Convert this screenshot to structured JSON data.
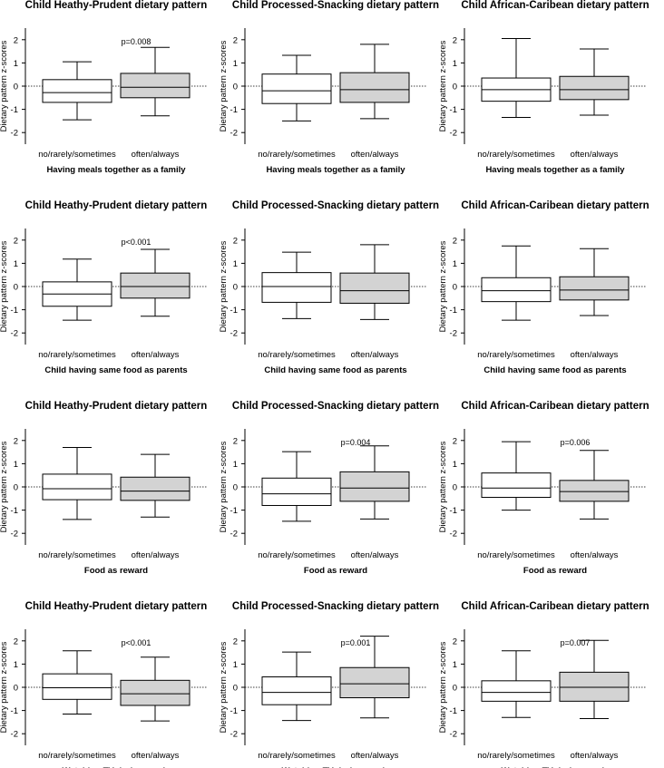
{
  "chart_data": [
    {
      "type": "box",
      "title": "Child Heathy-Prudent dietary pattern",
      "xlabel": "Having meals together as a family",
      "ylabel": "Dietary pattern z-scores",
      "ylim": [
        -2.5,
        2.5
      ],
      "yticks": [
        -2,
        -1,
        0,
        1,
        2
      ],
      "categories": [
        "no/rarely/sometimes",
        "often/always"
      ],
      "pvalue": "p=0.008",
      "boxes": [
        {
          "whislo": -1.45,
          "q1": -0.7,
          "med": -0.28,
          "q3": 0.28,
          "whishi": 1.05,
          "fill": "#ffffff"
        },
        {
          "whislo": -1.28,
          "q1": -0.5,
          "med": -0.05,
          "q3": 0.55,
          "whishi": 1.67,
          "fill": "#d3d3d3"
        }
      ]
    },
    {
      "type": "box",
      "title": "Child Processed-Snacking dietary pattern",
      "xlabel": "Having meals together as a family",
      "ylabel": "Dietary pattern z-scores",
      "ylim": [
        -2.5,
        2.5
      ],
      "yticks": [
        -2,
        -1,
        0,
        1,
        2
      ],
      "categories": [
        "no/rarely/sometimes",
        "often/always"
      ],
      "pvalue": "",
      "boxes": [
        {
          "whislo": -1.5,
          "q1": -0.75,
          "med": -0.2,
          "q3": 0.52,
          "whishi": 1.33,
          "fill": "#ffffff"
        },
        {
          "whislo": -1.4,
          "q1": -0.7,
          "med": -0.15,
          "q3": 0.58,
          "whishi": 1.8,
          "fill": "#d3d3d3"
        }
      ]
    },
    {
      "type": "box",
      "title": "Child African-Caribean dietary pattern",
      "xlabel": "Having meals together as a family",
      "ylabel": "Dietary pattern z-scores",
      "ylim": [
        -2.5,
        2.5
      ],
      "yticks": [
        -2,
        -1,
        0,
        1,
        2
      ],
      "categories": [
        "no/rarely/sometimes",
        "often/always"
      ],
      "pvalue": "",
      "boxes": [
        {
          "whislo": -1.35,
          "q1": -0.65,
          "med": -0.15,
          "q3": 0.35,
          "whishi": 2.05,
          "fill": "#ffffff"
        },
        {
          "whislo": -1.25,
          "q1": -0.58,
          "med": -0.15,
          "q3": 0.42,
          "whishi": 1.6,
          "fill": "#d3d3d3"
        }
      ]
    },
    {
      "type": "box",
      "title": "Child Heathy-Prudent dietary pattern",
      "xlabel": "Child having same food as parents",
      "ylabel": "Dietary pattern z-scores",
      "ylim": [
        -2.5,
        2.5
      ],
      "yticks": [
        -2,
        -1,
        0,
        1,
        2
      ],
      "categories": [
        "no/rarely/sometimes",
        "often/always"
      ],
      "pvalue": "p<0.001",
      "boxes": [
        {
          "whislo": -1.45,
          "q1": -0.85,
          "med": -0.32,
          "q3": 0.2,
          "whishi": 1.18,
          "fill": "#ffffff"
        },
        {
          "whislo": -1.28,
          "q1": -0.5,
          "med": 0.0,
          "q3": 0.58,
          "whishi": 1.6,
          "fill": "#d3d3d3"
        }
      ]
    },
    {
      "type": "box",
      "title": "Child Processed-Snacking dietary pattern",
      "xlabel": "Child having same food as parents",
      "ylabel": "Dietary pattern z-scores",
      "ylim": [
        -2.5,
        2.5
      ],
      "yticks": [
        -2,
        -1,
        0,
        1,
        2
      ],
      "categories": [
        "no/rarely/sometimes",
        "often/always"
      ],
      "pvalue": "",
      "boxes": [
        {
          "whislo": -1.38,
          "q1": -0.68,
          "med": 0.0,
          "q3": 0.6,
          "whishi": 1.48,
          "fill": "#ffffff"
        },
        {
          "whislo": -1.42,
          "q1": -0.72,
          "med": -0.18,
          "q3": 0.58,
          "whishi": 1.8,
          "fill": "#d3d3d3"
        }
      ]
    },
    {
      "type": "box",
      "title": "Child African-Caribean dietary pattern",
      "xlabel": "Child having same food as parents",
      "ylabel": "Dietary pattern z-scores",
      "ylim": [
        -2.5,
        2.5
      ],
      "yticks": [
        -2,
        -1,
        0,
        1,
        2
      ],
      "categories": [
        "no/rarely/sometimes",
        "often/always"
      ],
      "pvalue": "",
      "boxes": [
        {
          "whislo": -1.45,
          "q1": -0.65,
          "med": -0.18,
          "q3": 0.38,
          "whishi": 1.75,
          "fill": "#ffffff"
        },
        {
          "whislo": -1.25,
          "q1": -0.58,
          "med": -0.15,
          "q3": 0.42,
          "whishi": 1.63,
          "fill": "#d3d3d3"
        }
      ]
    },
    {
      "type": "box",
      "title": "Child Heathy-Prudent dietary pattern",
      "xlabel": "Food as reward",
      "ylabel": "Dietary pattern z-scores",
      "ylim": [
        -2.5,
        2.5
      ],
      "yticks": [
        -2,
        -1,
        0,
        1,
        2
      ],
      "categories": [
        "no/rarely/sometimes",
        "often/always"
      ],
      "pvalue": "",
      "boxes": [
        {
          "whislo": -1.4,
          "q1": -0.55,
          "med": -0.08,
          "q3": 0.55,
          "whishi": 1.7,
          "fill": "#ffffff"
        },
        {
          "whislo": -1.3,
          "q1": -0.58,
          "med": -0.18,
          "q3": 0.42,
          "whishi": 1.4,
          "fill": "#d3d3d3"
        }
      ]
    },
    {
      "type": "box",
      "title": "Child Processed-Snacking dietary pattern",
      "xlabel": "Food as reward",
      "ylabel": "Dietary pattern z-scores",
      "ylim": [
        -2.5,
        2.5
      ],
      "yticks": [
        -2,
        -1,
        0,
        1,
        2
      ],
      "categories": [
        "no/rarely/sometimes",
        "often/always"
      ],
      "pvalue": "p=0.004",
      "boxes": [
        {
          "whislo": -1.48,
          "q1": -0.8,
          "med": -0.3,
          "q3": 0.38,
          "whishi": 1.52,
          "fill": "#ffffff"
        },
        {
          "whislo": -1.38,
          "q1": -0.62,
          "med": -0.05,
          "q3": 0.65,
          "whishi": 1.77,
          "fill": "#d3d3d3"
        }
      ]
    },
    {
      "type": "box",
      "title": "Child African-Caribean dietary pattern",
      "xlabel": "Food as reward",
      "ylabel": "Dietary pattern z-scores",
      "ylim": [
        -2.5,
        2.5
      ],
      "yticks": [
        -2,
        -1,
        0,
        1,
        2
      ],
      "categories": [
        "no/rarely/sometimes",
        "often/always"
      ],
      "pvalue": "p=0.006",
      "boxes": [
        {
          "whislo": -1.0,
          "q1": -0.45,
          "med": -0.05,
          "q3": 0.6,
          "whishi": 1.95,
          "fill": "#ffffff"
        },
        {
          "whislo": -1.38,
          "q1": -0.62,
          "med": -0.2,
          "q3": 0.28,
          "whishi": 1.57,
          "fill": "#d3d3d3"
        }
      ]
    },
    {
      "type": "box",
      "title": "Child Heathy-Prudent dietary pattern",
      "xlabel": "Watching TV during meals",
      "ylabel": "Dietary pattern z-scores",
      "ylim": [
        -2.5,
        2.5
      ],
      "yticks": [
        -2,
        -1,
        0,
        1,
        2
      ],
      "categories": [
        "no/rarely/sometimes",
        "often/always"
      ],
      "pvalue": "p<0.001",
      "boxes": [
        {
          "whislo": -1.15,
          "q1": -0.52,
          "med": -0.02,
          "q3": 0.58,
          "whishi": 1.57,
          "fill": "#ffffff"
        },
        {
          "whislo": -1.45,
          "q1": -0.78,
          "med": -0.28,
          "q3": 0.3,
          "whishi": 1.3,
          "fill": "#d3d3d3"
        }
      ]
    },
    {
      "type": "box",
      "title": "Child Processed-Snacking dietary pattern",
      "xlabel": "Watching TV during meals",
      "ylabel": "Dietary pattern z-scores",
      "ylim": [
        -2.5,
        2.5
      ],
      "yticks": [
        -2,
        -1,
        0,
        1,
        2
      ],
      "categories": [
        "no/rarely/sometimes",
        "often/always"
      ],
      "pvalue": "p=0.001",
      "boxes": [
        {
          "whislo": -1.43,
          "q1": -0.75,
          "med": -0.22,
          "q3": 0.45,
          "whishi": 1.52,
          "fill": "#ffffff"
        },
        {
          "whislo": -1.32,
          "q1": -0.45,
          "med": 0.15,
          "q3": 0.85,
          "whishi": 2.2,
          "fill": "#d3d3d3"
        }
      ]
    },
    {
      "type": "box",
      "title": "Child African-Caribean dietary pattern",
      "xlabel": "Watching TV during meals",
      "ylabel": "Dietary pattern z-scores",
      "ylim": [
        -2.5,
        2.5
      ],
      "yticks": [
        -2,
        -1,
        0,
        1,
        2
      ],
      "categories": [
        "no/rarely/sometimes",
        "often/always"
      ],
      "pvalue": "p=0.007",
      "boxes": [
        {
          "whislo": -1.3,
          "q1": -0.6,
          "med": -0.22,
          "q3": 0.28,
          "whishi": 1.57,
          "fill": "#ffffff"
        },
        {
          "whislo": -1.35,
          "q1": -0.6,
          "med": 0.0,
          "q3": 0.65,
          "whishi": 2.02,
          "fill": "#d3d3d3"
        }
      ]
    }
  ]
}
